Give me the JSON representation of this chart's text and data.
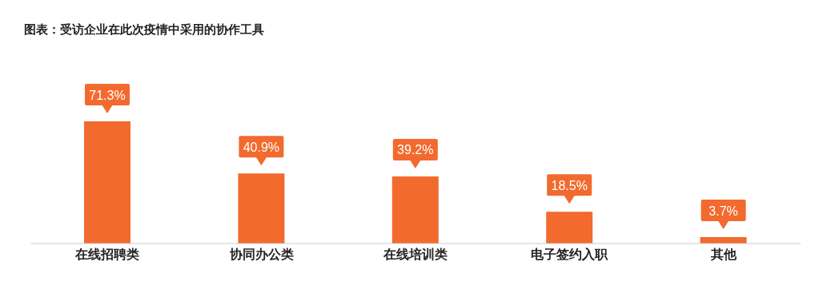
{
  "chart_data": {
    "type": "bar",
    "title": "图表：受访企业在此次疫情中采用的协作工具",
    "categories": [
      "在线招聘类",
      "协同办公类",
      "在线培训类",
      "电子签约入职",
      "其他"
    ],
    "values": [
      71.3,
      40.9,
      39.2,
      18.5,
      3.7
    ],
    "value_labels": [
      "71.3%",
      "40.9%",
      "39.2%",
      "18.5%",
      "3.7%"
    ],
    "color": "#f26a2e",
    "grid": false,
    "legend": false
  }
}
